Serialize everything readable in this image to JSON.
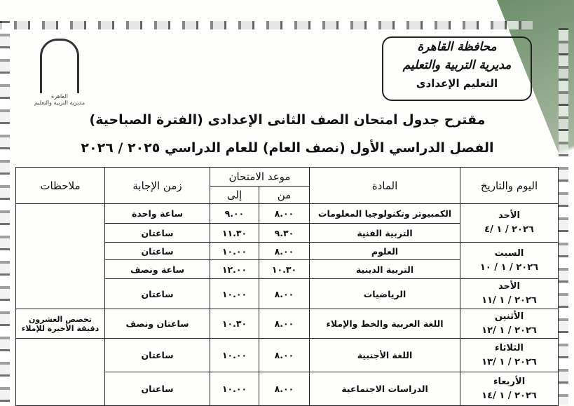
{
  "header": {
    "line1": "محافظة القاهرة",
    "line2": "مديرية التربية والتعليم",
    "line3": "التعليم الإعدادى"
  },
  "logo": {
    "text": "القاهرة",
    "subtext": "مديرية التربية والتعليم"
  },
  "title": "مقترح جدول امتحان الصف الثانى الإعدادى (الفترة الصباحية)",
  "subtitle": "الفصل الدراسي الأول (نصف العام) للعام الدراسي ٢٠٢٥ / ٢٠٢٦",
  "columns": {
    "day": "اليوم والتاريخ",
    "subject": "المادة",
    "slot": "موعد الامتحان",
    "from": "من",
    "to": "إلى",
    "duration": "زمن الإجابة",
    "notes": "ملاحظات"
  },
  "days": [
    {
      "day": "الأحد",
      "date": "٢٠٢٦ / ١ /٤"
    },
    {
      "day": "السبت",
      "date": "٢٠٢٦ / ١ / ١٠"
    },
    {
      "day": "الأحد",
      "date": "٢٠٢٦ / ١ /١١"
    },
    {
      "day": "الأثنين",
      "date": "٢٠٢٦ / ١ /١٢"
    },
    {
      "day": "الثلاثاء",
      "date": "٢٠٢٦ / ١ /١٣"
    },
    {
      "day": "الأربعاء",
      "date": "٢٠٢٦ / ١ /١٤"
    }
  ],
  "rows": [
    {
      "subject": "الكمبيوتر وتكنولوجيا المعلومات",
      "from": "٨.٠٠",
      "to": "٩.٠٠",
      "duration": "ساعة واحدة"
    },
    {
      "subject": "التربية الفنية",
      "from": "٩.٣٠",
      "to": "١١.٣٠",
      "duration": "ساعتان"
    },
    {
      "subject": "العلوم",
      "from": "٨.٠٠",
      "to": "١٠.٠٠",
      "duration": "ساعتان"
    },
    {
      "subject": "التربية الدينية",
      "from": "١٠.٣٠",
      "to": "١٢.٠٠",
      "duration": "ساعة ونصف"
    },
    {
      "subject": "الرياضيات",
      "from": "٨.٠٠",
      "to": "١٠.٠٠",
      "duration": "ساعتان"
    },
    {
      "subject": "اللغة العربية والخط والإملاء",
      "from": "٨.٠٠",
      "to": "١٠.٣٠",
      "duration": "ساعتان ونصف",
      "notes": "تخصص العشرون دقيقة الأخيرة للإملاء"
    },
    {
      "subject": "اللغة الأجنبية",
      "from": "٨.٠٠",
      "to": "١٠.٠٠",
      "duration": "ساعتان"
    },
    {
      "subject": "الدراسات الاجتماعية",
      "from": "٨.٠٠",
      "to": "١٠.٠٠",
      "duration": "ساعتان"
    }
  ]
}
